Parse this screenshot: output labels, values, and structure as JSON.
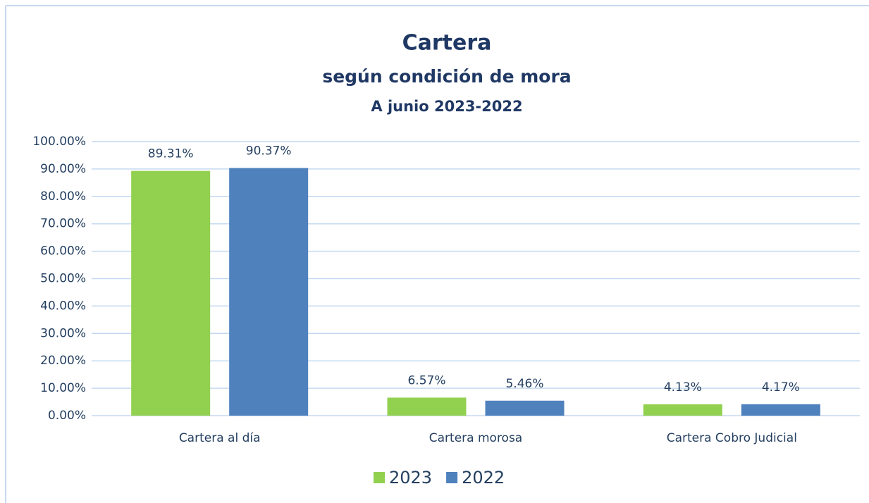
{
  "chart_data": {
    "type": "bar",
    "title": "Cartera",
    "subtitle": "según condición de mora",
    "subtitle2": "A junio 2023-2022",
    "categories": [
      "Cartera al día",
      "Cartera morosa",
      "Cartera Cobro Judicial"
    ],
    "series": [
      {
        "name": "2023",
        "color": "#92d050",
        "values": [
          89.31,
          6.57,
          4.13
        ],
        "value_labels": [
          "89.31%",
          "6.57%",
          "4.13%"
        ]
      },
      {
        "name": "2022",
        "color": "#4f81bd",
        "values": [
          90.37,
          5.46,
          4.17
        ],
        "value_labels": [
          "90.37%",
          "5.46%",
          "4.17%"
        ]
      }
    ],
    "ylim": [
      0,
      100
    ],
    "yticks": [
      {
        "value": 0,
        "label": "0.00%"
      },
      {
        "value": 10,
        "label": "10.00%"
      },
      {
        "value": 20,
        "label": "20.00%"
      },
      {
        "value": 30,
        "label": "30.00%"
      },
      {
        "value": 40,
        "label": "40.00%"
      },
      {
        "value": 50,
        "label": "50.00%"
      },
      {
        "value": 60,
        "label": "60.00%"
      },
      {
        "value": 70,
        "label": "70.00%"
      },
      {
        "value": 80,
        "label": "80.00%"
      },
      {
        "value": 90,
        "label": "90.00%"
      },
      {
        "value": 100,
        "label": "100.00%"
      }
    ],
    "grid": true,
    "legend": "bottom"
  }
}
